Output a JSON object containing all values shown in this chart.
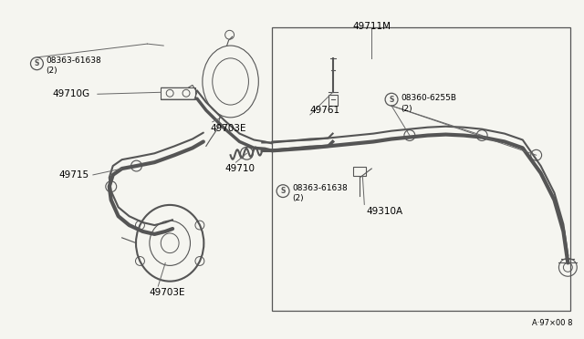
{
  "bg_color": "#f5f5f0",
  "line_color": "#555555",
  "label_color": "#000000",
  "fig_width": 6.4,
  "fig_height": 3.72,
  "dpi": 100,
  "watermark": "A·97×00 8",
  "label_49711M": "49711M",
  "label_49761": "49761",
  "label_08360": "08360-6255B",
  "label_08360_qty": "(2)",
  "label_49310A": "49310A",
  "label_49710": "49710",
  "label_08363_lower": "08363-61638",
  "label_08363_lower_qty": "(2)",
  "label_49715": "49715",
  "label_49710G": "49710G",
  "label_49703E_upper": "49703E",
  "label_08363_upper": "08363-61638",
  "label_08363_upper_qty": "(2)",
  "label_49703E_lower": "49703E"
}
